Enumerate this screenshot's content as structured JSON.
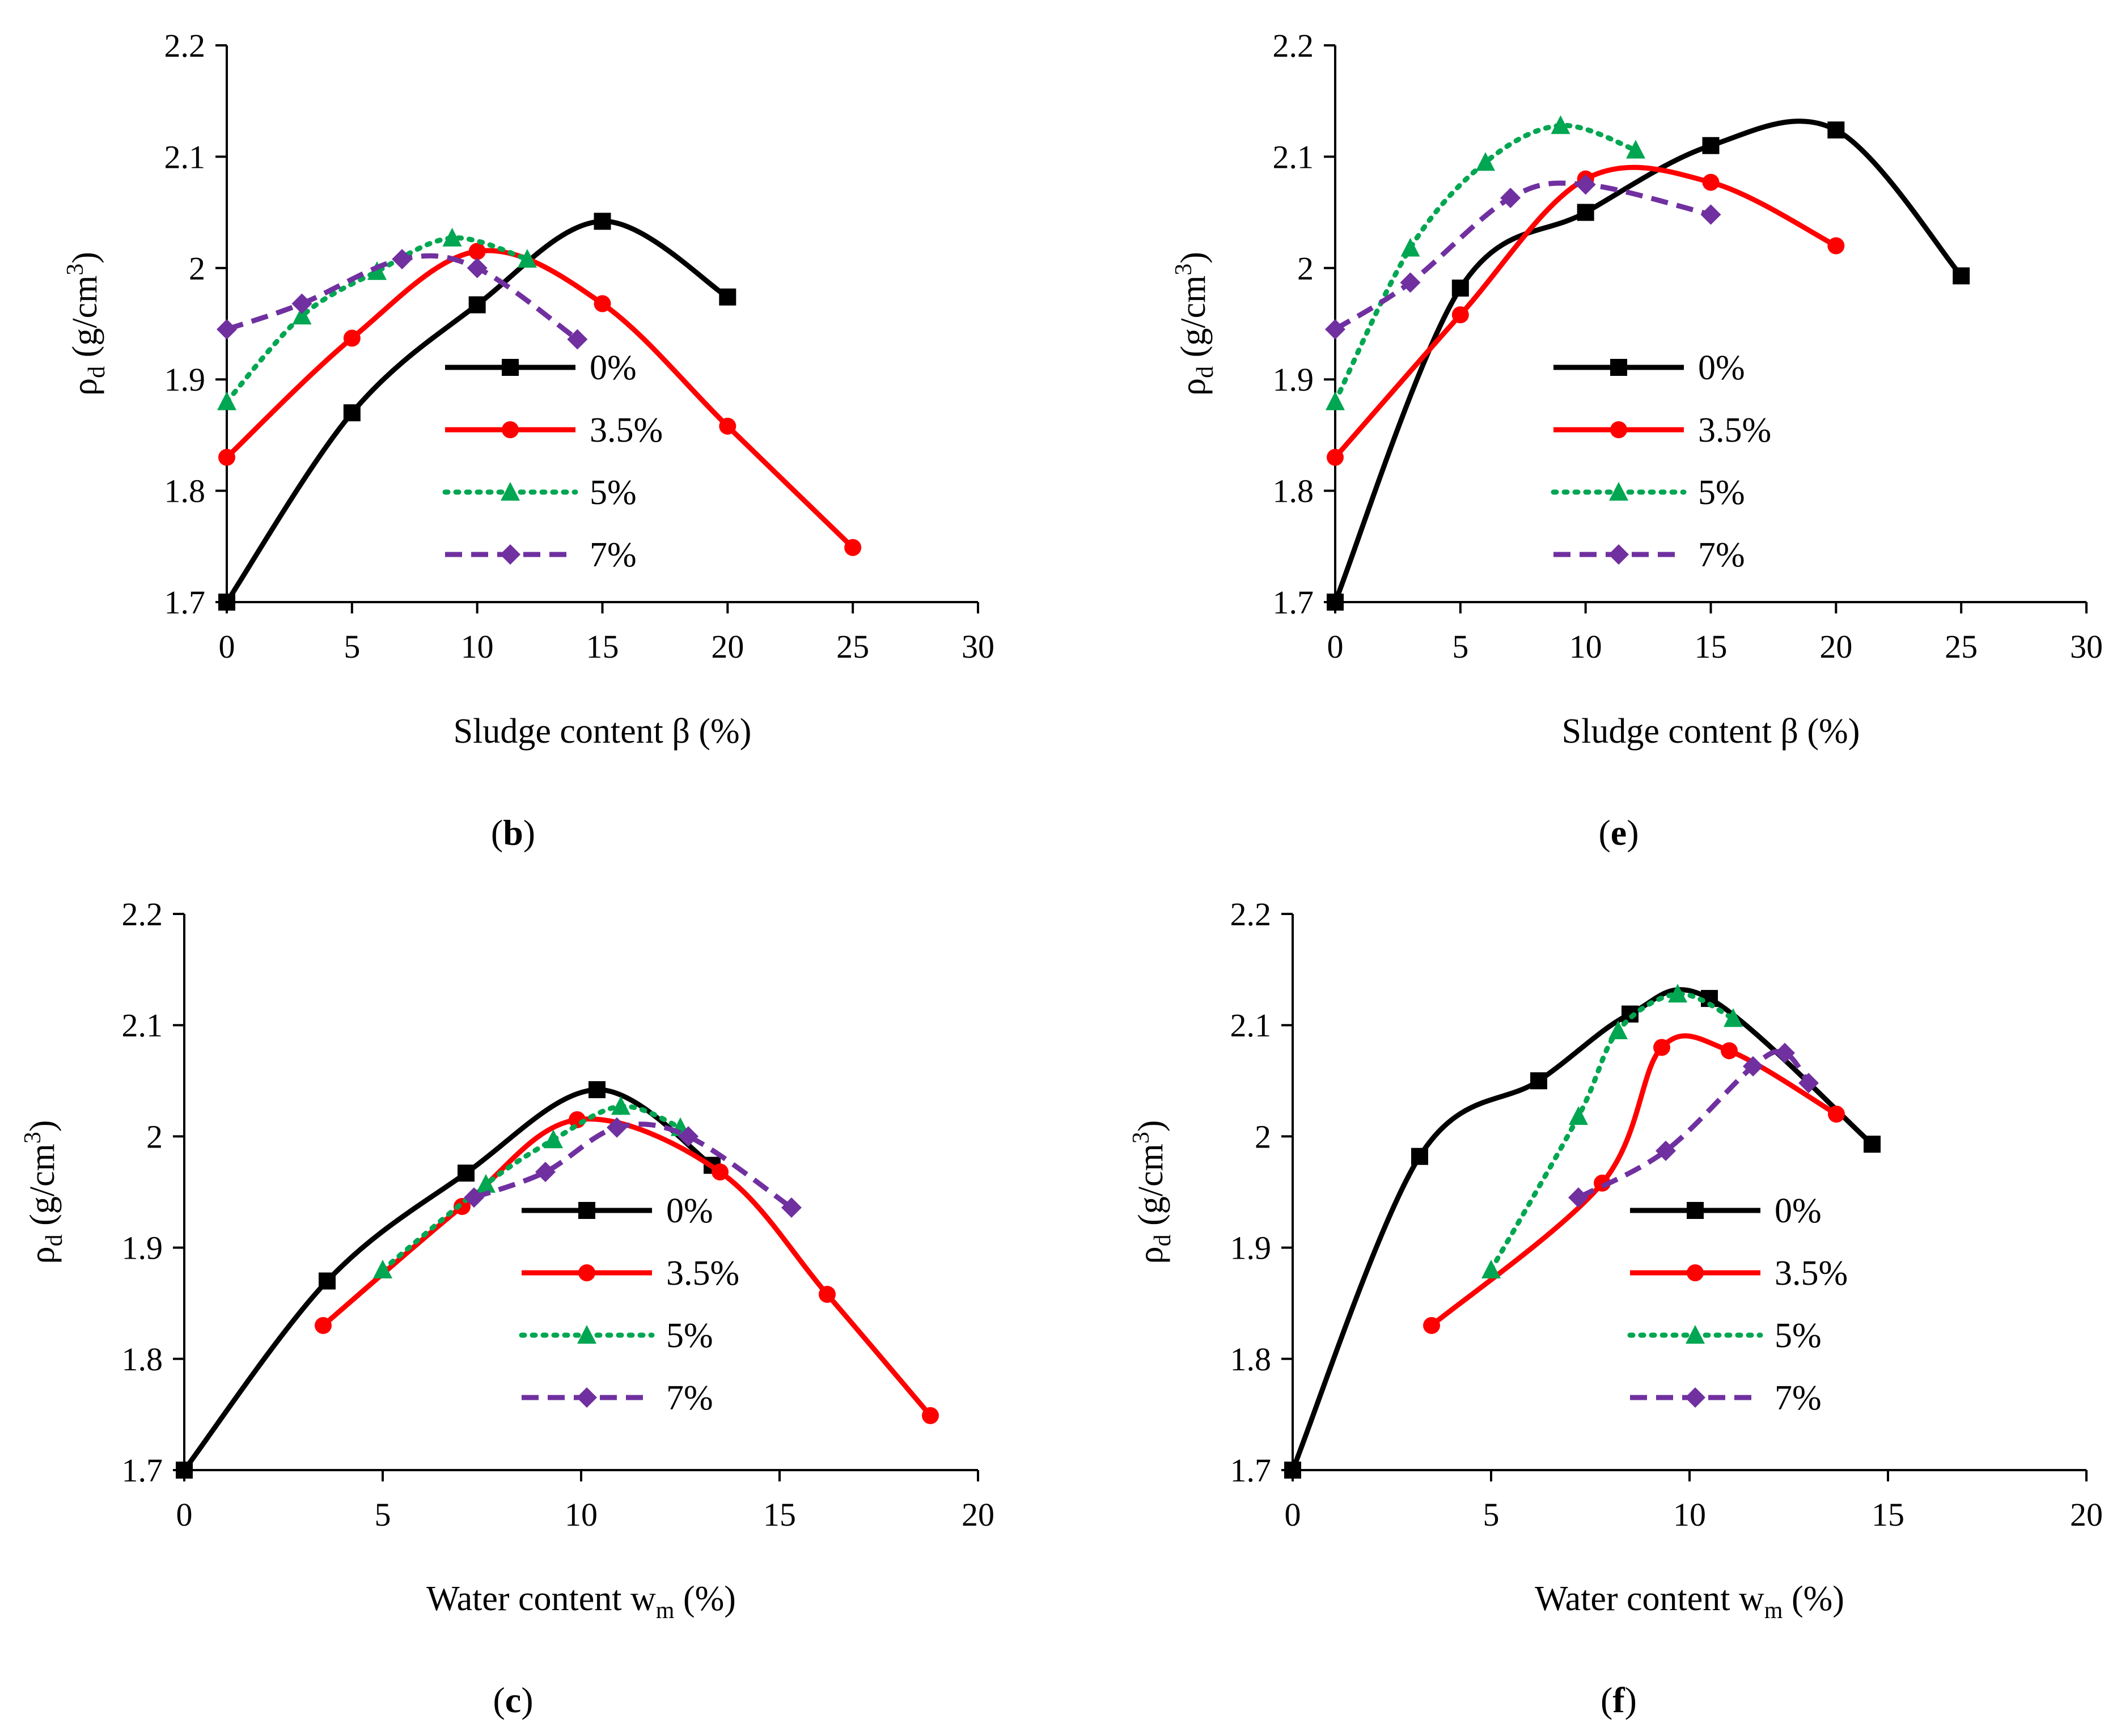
{
  "chart_data": [
    {
      "type": "line",
      "panel": "b",
      "xlabel": "Sludge content β (%)",
      "ylabel": "ρd (g/cm3)",
      "ylabel_main": "ρ",
      "ylabel_sub": "d",
      "ylabel_unit": " (g/cm",
      "ylabel_sup": "3",
      "ylabel_close": ")",
      "xlim": [
        0,
        30
      ],
      "ylim": [
        1.7,
        2.2
      ],
      "xticks": [
        0,
        5,
        10,
        15,
        20,
        25,
        30
      ],
      "yticks": [
        "1.7",
        "1.8",
        "1.9",
        "2",
        "2.1",
        "2.2"
      ],
      "series": [
        {
          "name": "0%",
          "color": "#000000",
          "marker": "square",
          "dash": "solid",
          "x": [
            0,
            5,
            10,
            15,
            20
          ],
          "y": [
            1.7,
            1.87,
            1.967,
            2.042,
            1.974
          ]
        },
        {
          "name": "3.5%",
          "color": "#ff0000",
          "marker": "circle",
          "dash": "solid",
          "x": [
            0,
            5,
            10,
            15,
            20,
            25
          ],
          "y": [
            1.83,
            1.937,
            2.015,
            1.968,
            1.858,
            1.749
          ]
        },
        {
          "name": "5%",
          "color": "#00a651",
          "marker": "triangle",
          "dash": "dotted",
          "x": [
            0,
            3,
            6,
            9,
            12
          ],
          "y": [
            1.88,
            1.957,
            1.997,
            2.027,
            2.008
          ]
        },
        {
          "name": "7%",
          "color": "#7030a0",
          "marker": "diamond",
          "dash": "dashed",
          "x": [
            0,
            3,
            7,
            10,
            14
          ],
          "y": [
            1.945,
            1.968,
            2.008,
            2.0,
            1.936
          ]
        }
      ]
    },
    {
      "type": "line",
      "panel": "e",
      "xlabel": "Sludge content β (%)",
      "ylabel": "ρd (g/cm3)",
      "ylabel_main": "ρ",
      "ylabel_sub": "d",
      "ylabel_unit": " (g/cm",
      "ylabel_sup": "3",
      "ylabel_close": ")",
      "xlim": [
        0,
        30
      ],
      "ylim": [
        1.7,
        2.2
      ],
      "xticks": [
        0,
        5,
        10,
        15,
        20,
        25,
        30
      ],
      "yticks": [
        "1.7",
        "1.8",
        "1.9",
        "2",
        "2.1",
        "2.2"
      ],
      "series": [
        {
          "name": "0%",
          "color": "#000000",
          "marker": "square",
          "dash": "solid",
          "x": [
            0,
            5,
            10,
            15,
            20,
            25
          ],
          "y": [
            1.7,
            1.982,
            2.05,
            2.11,
            2.124,
            1.993
          ]
        },
        {
          "name": "3.5%",
          "color": "#ff0000",
          "marker": "circle",
          "dash": "solid",
          "x": [
            0,
            5,
            10,
            15,
            20
          ],
          "y": [
            1.83,
            1.958,
            2.08,
            2.077,
            2.02
          ]
        },
        {
          "name": "5%",
          "color": "#00a651",
          "marker": "triangle",
          "dash": "dotted",
          "x": [
            0,
            3,
            6,
            9,
            12
          ],
          "y": [
            1.88,
            2.018,
            2.095,
            2.128,
            2.106
          ]
        },
        {
          "name": "7%",
          "color": "#7030a0",
          "marker": "diamond",
          "dash": "dashed",
          "x": [
            0,
            3,
            7,
            10,
            15
          ],
          "y": [
            1.945,
            1.987,
            2.063,
            2.075,
            2.048
          ]
        }
      ]
    },
    {
      "type": "line",
      "panel": "c",
      "xlabel": "Water content wm (%)",
      "xlabel_main": "Water content w",
      "xlabel_sub": "m",
      "xlabel_close": " (%)",
      "ylabel": "ρd (g/cm3)",
      "ylabel_main": "ρ",
      "ylabel_sub": "d",
      "ylabel_unit": " (g/cm",
      "ylabel_sup": "3",
      "ylabel_close": ")",
      "xlim": [
        0,
        20
      ],
      "ylim": [
        1.7,
        2.2
      ],
      "xticks": [
        0,
        5,
        10,
        15,
        20
      ],
      "yticks": [
        "1.7",
        "1.8",
        "1.9",
        "2",
        "2.1",
        "2.2"
      ],
      "series": [
        {
          "name": "0%",
          "color": "#000000",
          "marker": "square",
          "dash": "solid",
          "x": [
            0,
            3.6,
            7.1,
            10.4,
            13.3
          ],
          "y": [
            1.7,
            1.87,
            1.967,
            2.042,
            1.974
          ]
        },
        {
          "name": "3.5%",
          "color": "#ff0000",
          "marker": "circle",
          "dash": "solid",
          "x": [
            3.5,
            7.0,
            9.9,
            13.5,
            16.2,
            18.8
          ],
          "y": [
            1.83,
            1.937,
            2.015,
            1.968,
            1.858,
            1.749
          ]
        },
        {
          "name": "5%",
          "color": "#00a651",
          "marker": "triangle",
          "dash": "dotted",
          "x": [
            5.0,
            7.6,
            9.3,
            11.0,
            12.5
          ],
          "y": [
            1.88,
            1.957,
            1.997,
            2.027,
            2.008
          ]
        },
        {
          "name": "7%",
          "color": "#7030a0",
          "marker": "diamond",
          "dash": "dashed",
          "x": [
            7.3,
            9.1,
            10.9,
            12.7,
            15.3
          ],
          "y": [
            1.945,
            1.968,
            2.008,
            2.0,
            1.936
          ]
        }
      ]
    },
    {
      "type": "line",
      "panel": "f",
      "xlabel": "Water content wm (%)",
      "xlabel_main": "Water content w",
      "xlabel_sub": "m",
      "xlabel_close": " (%)",
      "ylabel": "ρd (g/cm3)",
      "ylabel_main": "ρ",
      "ylabel_sub": "d",
      "ylabel_unit": " (g/cm",
      "ylabel_sup": "3",
      "ylabel_close": ")",
      "xlim": [
        0,
        20
      ],
      "ylim": [
        1.7,
        2.2
      ],
      "xticks": [
        0,
        5,
        10,
        15,
        20
      ],
      "yticks": [
        "1.7",
        "1.8",
        "1.9",
        "2",
        "2.1",
        "2.2"
      ],
      "series": [
        {
          "name": "0%",
          "color": "#000000",
          "marker": "square",
          "dash": "solid",
          "x": [
            0,
            3.2,
            6.2,
            8.5,
            10.5,
            14.6
          ],
          "y": [
            1.7,
            1.982,
            2.05,
            2.11,
            2.124,
            1.993
          ]
        },
        {
          "name": "3.5%",
          "color": "#ff0000",
          "marker": "circle",
          "dash": "solid",
          "x": [
            3.5,
            7.8,
            9.3,
            11.0,
            13.7
          ],
          "y": [
            1.83,
            1.958,
            2.08,
            2.077,
            2.02
          ]
        },
        {
          "name": "5%",
          "color": "#00a651",
          "marker": "triangle",
          "dash": "dotted",
          "x": [
            5.0,
            7.2,
            8.2,
            9.7,
            11.1
          ],
          "y": [
            1.88,
            2.018,
            2.095,
            2.128,
            2.106
          ]
        },
        {
          "name": "7%",
          "color": "#7030a0",
          "marker": "diamond",
          "dash": "dashed",
          "x": [
            7.2,
            9.4,
            11.6,
            12.4,
            13.0
          ],
          "y": [
            1.945,
            1.987,
            2.063,
            2.075,
            2.048
          ]
        }
      ]
    }
  ],
  "panel_labels": {
    "b": {
      "open": "(",
      "letter": "b",
      "close": ")"
    },
    "e": {
      "open": "(",
      "letter": "e",
      "close": ")"
    },
    "c": {
      "open": "(",
      "letter": "c",
      "close": ")"
    },
    "f": {
      "open": "(",
      "letter": "f",
      "close": ")"
    }
  }
}
